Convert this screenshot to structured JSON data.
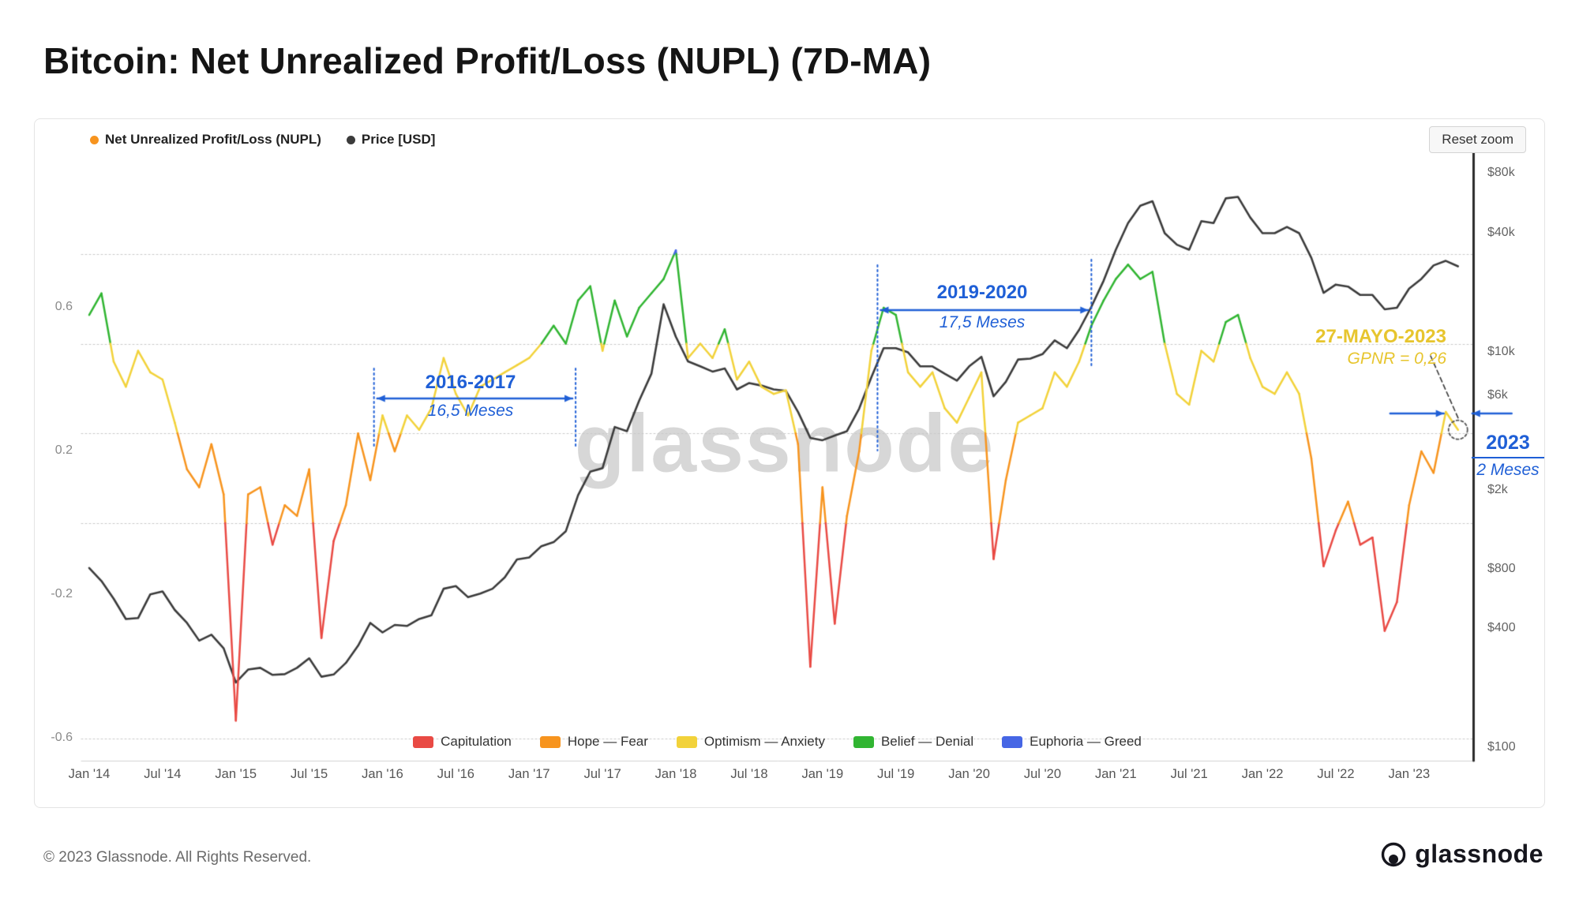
{
  "page": {
    "title": "Bitcoin: Net Unrealized Profit/Loss (NUPL) (7D-MA)",
    "footer_copyright": "© 2023 Glassnode. All Rights Reserved.",
    "brand": "glassnode"
  },
  "toolbar": {
    "reset_zoom_label": "Reset zoom"
  },
  "watermark": "glassnode",
  "legend_top": [
    {
      "label": "Net Unrealized Profit/Loss (NUPL)",
      "color": "#f7941e"
    },
    {
      "label": "Price [USD]",
      "color": "#3b3b3b"
    }
  ],
  "chart_data": {
    "type": "line",
    "title": "Bitcoin: Net Unrealized Profit/Loss (NUPL) (7D-MA)",
    "x_start": "2014-01",
    "x_end": "2023-05",
    "x_frequency": "monthly",
    "x_ticks": [
      {
        "label": "Jan '14",
        "t": 0
      },
      {
        "label": "Jul '14",
        "t": 6
      },
      {
        "label": "Jan '15",
        "t": 12
      },
      {
        "label": "Jul '15",
        "t": 18
      },
      {
        "label": "Jan '16",
        "t": 24
      },
      {
        "label": "Jul '16",
        "t": 30
      },
      {
        "label": "Jan '17",
        "t": 36
      },
      {
        "label": "Jul '17",
        "t": 42
      },
      {
        "label": "Jan '18",
        "t": 48
      },
      {
        "label": "Jul '18",
        "t": 54
      },
      {
        "label": "Jan '19",
        "t": 60
      },
      {
        "label": "Jul '19",
        "t": 66
      },
      {
        "label": "Jan '20",
        "t": 72
      },
      {
        "label": "Jul '20",
        "t": 78
      },
      {
        "label": "Jan '21",
        "t": 84
      },
      {
        "label": "Jul '21",
        "t": 90
      },
      {
        "label": "Jan '22",
        "t": 96
      },
      {
        "label": "Jul '22",
        "t": 102
      },
      {
        "label": "Jan '23",
        "t": 108
      }
    ],
    "left_axis": {
      "label": "NUPL",
      "ticks": [
        {
          "label": "0.6",
          "value": 0.6
        },
        {
          "label": "0.2",
          "value": 0.2
        },
        {
          "label": "-0.2",
          "value": -0.2
        },
        {
          "label": "-0.6",
          "value": -0.6
        }
      ],
      "gridlines": [
        0.75,
        0.5,
        0.25,
        0,
        -0.6
      ]
    },
    "right_axis": {
      "label": "Price [USD]",
      "scale": "log",
      "ticks": [
        {
          "label": "$80k",
          "value": 80000
        },
        {
          "label": "$40k",
          "value": 40000
        },
        {
          "label": "$10k",
          "value": 10000
        },
        {
          "label": "$6k",
          "value": 6000
        },
        {
          "label": "$2k",
          "value": 2000
        },
        {
          "label": "$800",
          "value": 800
        },
        {
          "label": "$400",
          "value": 400
        },
        {
          "label": "$100",
          "value": 100
        }
      ]
    },
    "bands": [
      {
        "label": "Capitulation",
        "color": "#e94a44",
        "min": -1,
        "max": 0
      },
      {
        "label": "Hope — Fear",
        "color": "#f7941e",
        "min": 0,
        "max": 0.25
      },
      {
        "label": "Optimism — Anxiety",
        "color": "#f2d23a",
        "min": 0.25,
        "max": 0.5
      },
      {
        "label": "Belief — Denial",
        "color": "#31b532",
        "min": 0.5,
        "max": 0.75
      },
      {
        "label": "Euphoria — Greed",
        "color": "#4666e5",
        "min": 0.75,
        "max": 1
      }
    ],
    "series": [
      {
        "name": "Net Unrealized Profit/Loss (NUPL)",
        "color_mode": "banded",
        "values": [
          0.58,
          0.64,
          0.45,
          0.38,
          0.48,
          0.42,
          0.4,
          0.28,
          0.15,
          0.1,
          0.22,
          0.08,
          -0.55,
          0.08,
          0.1,
          -0.06,
          0.05,
          0.02,
          0.15,
          -0.32,
          -0.05,
          0.05,
          0.25,
          0.12,
          0.3,
          0.2,
          0.3,
          0.26,
          0.32,
          0.46,
          0.36,
          0.3,
          0.38,
          0.4,
          0.42,
          0.44,
          0.46,
          0.5,
          0.55,
          0.5,
          0.62,
          0.66,
          0.48,
          0.62,
          0.52,
          0.6,
          0.64,
          0.68,
          0.76,
          0.46,
          0.5,
          0.46,
          0.54,
          0.4,
          0.45,
          0.38,
          0.36,
          0.37,
          0.22,
          -0.4,
          0.1,
          -0.28,
          0.02,
          0.2,
          0.48,
          0.6,
          0.58,
          0.42,
          0.38,
          0.42,
          0.32,
          0.28,
          0.35,
          0.42,
          -0.1,
          0.12,
          0.28,
          0.3,
          0.32,
          0.42,
          0.38,
          0.45,
          0.55,
          0.62,
          0.68,
          0.72,
          0.68,
          0.7,
          0.5,
          0.36,
          0.33,
          0.48,
          0.45,
          0.56,
          0.58,
          0.46,
          0.38,
          0.36,
          0.42,
          0.36,
          0.18,
          -0.12,
          -0.02,
          0.06,
          -0.06,
          -0.04,
          -0.3,
          -0.22,
          0.05,
          0.2,
          0.14,
          0.31,
          0.26
        ]
      },
      {
        "name": "Price [USD]",
        "color": "#3b3b3b",
        "values": [
          815,
          700,
          570,
          450,
          455,
          600,
          620,
          500,
          430,
          350,
          375,
          320,
          215,
          250,
          255,
          235,
          237,
          255,
          285,
          230,
          236,
          270,
          330,
          430,
          385,
          420,
          415,
          450,
          470,
          640,
          660,
          580,
          605,
          640,
          730,
          900,
          920,
          1050,
          1100,
          1250,
          1900,
          2500,
          2600,
          4200,
          4000,
          5700,
          7800,
          17500,
          12000,
          9000,
          8500,
          8000,
          8300,
          6500,
          7000,
          6800,
          6500,
          6400,
          5000,
          3700,
          3600,
          3800,
          4000,
          5200,
          7500,
          10500,
          10500,
          10000,
          8500,
          8500,
          7800,
          7200,
          8500,
          9500,
          6000,
          7100,
          9200,
          9300,
          9800,
          11500,
          10500,
          13000,
          17000,
          23000,
          33000,
          45000,
          55000,
          58000,
          40000,
          35000,
          33000,
          46000,
          45000,
          60000,
          61000,
          48000,
          40000,
          40000,
          43000,
          40000,
          30000,
          20000,
          22000,
          21500,
          19500,
          19500,
          16500,
          16800,
          21000,
          23500,
          27500,
          29000,
          27200
        ]
      }
    ],
    "annotations": [
      {
        "id": "span-2016-2017",
        "label": "2016-2017",
        "duration": "16,5 Meses",
        "t1": 23.3,
        "t2": 39.8,
        "color": "#1f5fd6"
      },
      {
        "id": "span-2019-2020",
        "label": "2019-2020",
        "duration": "17,5 Meses",
        "t1": 64.5,
        "t2": 82.0,
        "color": "#1f5fd6"
      },
      {
        "id": "callout-may-2023",
        "label": "27-MAYO-2023",
        "value": "GPNR = 0,26",
        "color": "#e7c52e"
      },
      {
        "id": "span-2023",
        "label": "2023",
        "duration": "2  Meses",
        "color": "#1f5fd6"
      }
    ]
  }
}
